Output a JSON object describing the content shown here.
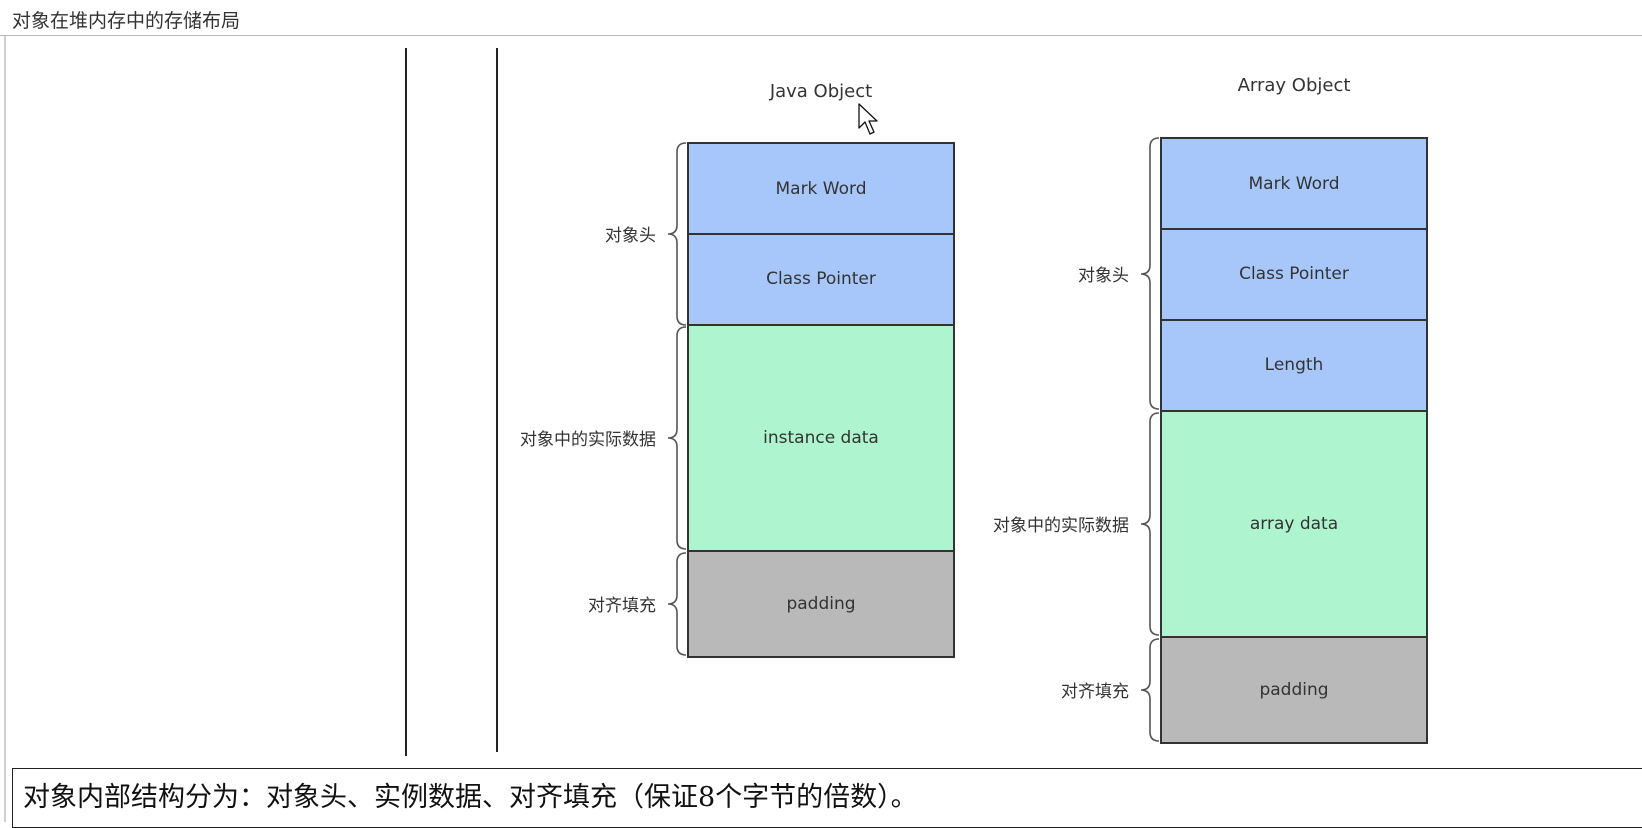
{
  "window": {
    "title": "对象在堆内存中的存储布局"
  },
  "diagrams": {
    "java_object": {
      "title": "Java Object",
      "blocks": [
        {
          "label": "Mark Word",
          "kind": "header"
        },
        {
          "label": "Class Pointer",
          "kind": "header"
        },
        {
          "label": "instance data",
          "kind": "data"
        },
        {
          "label": "padding",
          "kind": "padding"
        }
      ],
      "braces": [
        {
          "label": "对象头"
        },
        {
          "label": "对象中的实际数据"
        },
        {
          "label": "对齐填充"
        }
      ]
    },
    "array_object": {
      "title": "Array Object",
      "blocks": [
        {
          "label": "Mark Word",
          "kind": "header"
        },
        {
          "label": "Class Pointer",
          "kind": "header"
        },
        {
          "label": "Length",
          "kind": "header"
        },
        {
          "label": "array data",
          "kind": "data"
        },
        {
          "label": "padding",
          "kind": "padding"
        }
      ],
      "braces": [
        {
          "label": "对象头"
        },
        {
          "label": "对象中的实际数据"
        },
        {
          "label": "对齐填充"
        }
      ]
    }
  },
  "colors": {
    "header": "#a7c7fb",
    "data": "#aef5cf",
    "padding": "#b9b9b9"
  },
  "caption": "对象内部结构分为：对象头、实例数据、对齐填充（保证8个字节的倍数）。"
}
